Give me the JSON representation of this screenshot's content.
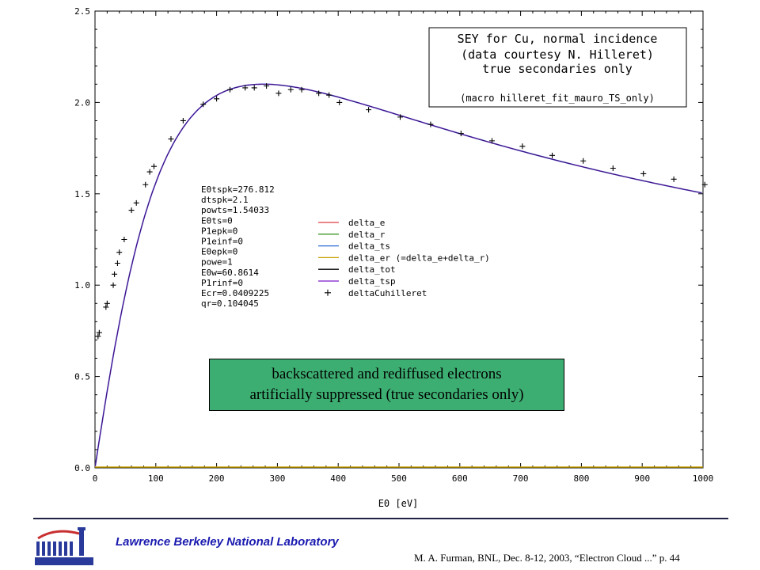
{
  "chart_data": {
    "type": "line",
    "title_box": [
      "SEY for Cu, normal incidence",
      "(data courtesy N. Hilleret)",
      "true secondaries only",
      "(macro hilleret_fit_mauro_TS_only)"
    ],
    "xlabel": "E0 [eV]",
    "ylabel": "",
    "xlim": [
      0,
      1000
    ],
    "ylim": [
      0,
      2.5
    ],
    "x_ticks": [
      "0",
      "100",
      "200",
      "300",
      "400",
      "500",
      "600",
      "700",
      "800",
      "900",
      "1000"
    ],
    "y_ticks": [
      "0.0",
      "0.5",
      "1.0",
      "1.5",
      "2.0",
      "2.5"
    ],
    "params": [
      "E0tspk=276.812",
      "dtspk=2.1",
      "powts=1.54033",
      "E0ts=0",
      "P1epk=0",
      "P1einf=0",
      "E0epk=0",
      "powe=1",
      "E0w=60.8614",
      "P1rinf=0",
      "Ecr=0.0409225",
      "qr=0.104045"
    ],
    "fit_params": {
      "E0tspk": 276.812,
      "dtspk": 2.1,
      "powts": 1.54033
    },
    "legend": [
      {
        "name": "delta_e",
        "color": "#e03c3c",
        "kind": "line"
      },
      {
        "name": "delta_r",
        "color": "#3c9a2a",
        "kind": "line"
      },
      {
        "name": "delta_ts",
        "color": "#2a6ad6",
        "kind": "line"
      },
      {
        "name": "delta_er (=delta_e+delta_r)",
        "color": "#c8a000",
        "kind": "line"
      },
      {
        "name": "delta_tot",
        "color": "#000000",
        "kind": "line"
      },
      {
        "name": "delta_tsp",
        "color": "#7a1ac8",
        "kind": "line"
      },
      {
        "name": "deltaCuhilleret",
        "color": "#000000",
        "kind": "marker"
      }
    ],
    "series_zero": {
      "name": "delta_er (=delta_e+delta_r)",
      "value": 0.0,
      "color": "#c8a000"
    },
    "data_points": [
      [
        5,
        0.72
      ],
      [
        7,
        0.74
      ],
      [
        18,
        0.88
      ],
      [
        20,
        0.9
      ],
      [
        30,
        1.0
      ],
      [
        32,
        1.06
      ],
      [
        37,
        1.12
      ],
      [
        40,
        1.18
      ],
      [
        48,
        1.25
      ],
      [
        60,
        1.41
      ],
      [
        68,
        1.45
      ],
      [
        83,
        1.55
      ],
      [
        90,
        1.62
      ],
      [
        97,
        1.65
      ],
      [
        125,
        1.8
      ],
      [
        145,
        1.9
      ],
      [
        178,
        1.99
      ],
      [
        200,
        2.02
      ],
      [
        222,
        2.07
      ],
      [
        247,
        2.08
      ],
      [
        262,
        2.08
      ],
      [
        282,
        2.09
      ],
      [
        302,
        2.05
      ],
      [
        322,
        2.07
      ],
      [
        340,
        2.07
      ],
      [
        368,
        2.05
      ],
      [
        385,
        2.04
      ],
      [
        402,
        2.0
      ],
      [
        450,
        1.96
      ],
      [
        502,
        1.92
      ],
      [
        552,
        1.88
      ],
      [
        602,
        1.83
      ],
      [
        653,
        1.79
      ],
      [
        703,
        1.76
      ],
      [
        752,
        1.71
      ],
      [
        803,
        1.68
      ],
      [
        852,
        1.64
      ],
      [
        902,
        1.61
      ],
      [
        952,
        1.58
      ],
      [
        1003,
        1.55
      ]
    ]
  },
  "note": {
    "line1": "backscattered and rediffused electrons",
    "line2": "artificially suppressed (true secondaries only)"
  },
  "footer": {
    "lab": "Lawrence Berkeley National Laboratory",
    "citation": "M. A. Furman, BNL, Dec. 8-12, 2003, “Electron Cloud ...”  p. 44"
  }
}
